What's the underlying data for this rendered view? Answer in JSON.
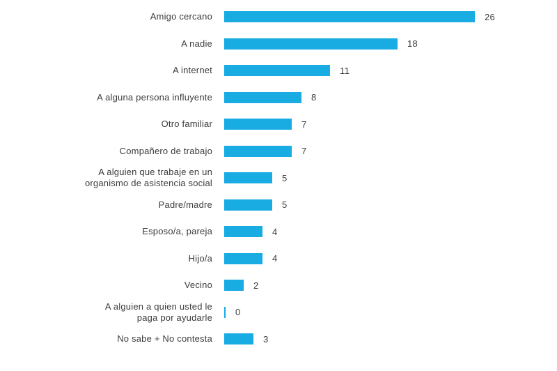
{
  "chart_data": {
    "type": "bar",
    "orientation": "horizontal",
    "title": "",
    "xlabel": "",
    "ylabel": "",
    "xlim": [
      0,
      28
    ],
    "grid": false,
    "legend": null,
    "value_labels_shown": true,
    "categories": [
      "Amigo cercano",
      "A nadie",
      "A internet",
      "A alguna persona influyente",
      "Otro familiar",
      "Compañero de trabajo",
      "A alguien que trabaje en un\norganismo de asistencia social",
      "Padre/madre",
      "Esposo/a, pareja",
      "Hijo/a",
      "Vecino",
      "A alguien a quien usted le\npaga por ayudarle",
      "No sabe + No contesta"
    ],
    "values": [
      26,
      18,
      11,
      8,
      7,
      7,
      5,
      5,
      4,
      4,
      2,
      0,
      3
    ]
  },
  "colors": {
    "bar": "#18ace2",
    "text": "#3c3c3c",
    "background": "#ffffff"
  }
}
